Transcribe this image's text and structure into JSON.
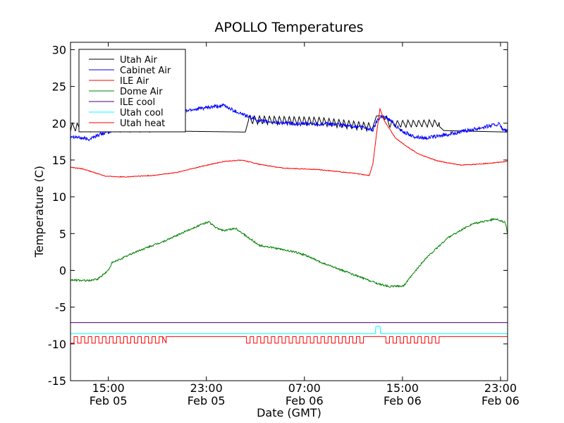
{
  "chart_data": {
    "type": "line",
    "title": "APOLLO Temperatures",
    "xlabel": "Date (GMT)",
    "ylabel": "Temperature (C)",
    "x_unit": "hours since Feb 05 11:00 GMT",
    "xlim": [
      0,
      37
    ],
    "ylim": [
      -15,
      31
    ],
    "yticks": [
      -15,
      -10,
      -5,
      0,
      5,
      10,
      15,
      20,
      25,
      30
    ],
    "xticks": [
      {
        "value": 3.2,
        "label1": "15:00",
        "label2": "Feb 05"
      },
      {
        "value": 11.5,
        "label1": "23:00",
        "label2": "Feb 05"
      },
      {
        "value": 19.8,
        "label1": "07:00",
        "label2": "Feb 06"
      },
      {
        "value": 28.1,
        "label1": "15:00",
        "label2": "Feb 06"
      },
      {
        "value": 36.4,
        "label1": "23:00",
        "label2": "Feb 06"
      }
    ],
    "legend_position": "top-left",
    "series": [
      {
        "name": "Utah Air",
        "color": "#000000",
        "points": [
          [
            0,
            19.0
          ],
          [
            10,
            18.9
          ],
          [
            14.8,
            18.8
          ],
          [
            15,
            20.0
          ],
          [
            21,
            19.8
          ],
          [
            25.5,
            19.0
          ],
          [
            25.9,
            21.0
          ],
          [
            26.4,
            21.0
          ],
          [
            27,
            19.5
          ],
          [
            31.2,
            19.6
          ],
          [
            31.6,
            19.0
          ],
          [
            37,
            18.8
          ]
        ],
        "oscillation": [
          {
            "start": 0,
            "end": 6.8,
            "period": 0.42,
            "amplitude": 1.2
          },
          {
            "start": 15.0,
            "end": 25.4,
            "period": 0.42,
            "amplitude": 1.2
          },
          {
            "start": 26.6,
            "end": 31.2,
            "period": 0.45,
            "amplitude": 1.0
          }
        ]
      },
      {
        "name": "Cabinet Air",
        "color": "#0000ff",
        "points": [
          [
            0,
            18.3
          ],
          [
            1.5,
            17.8
          ],
          [
            2.5,
            18.5
          ],
          [
            5,
            19.5
          ],
          [
            8,
            20.5
          ],
          [
            10,
            21.8
          ],
          [
            13,
            22.4
          ],
          [
            14,
            21.6
          ],
          [
            16,
            20.3
          ],
          [
            19,
            19.9
          ],
          [
            22,
            19.9
          ],
          [
            24.5,
            19.5
          ],
          [
            25.6,
            19.1
          ],
          [
            26,
            20.5
          ],
          [
            26.4,
            21.0
          ],
          [
            27,
            20.5
          ],
          [
            28,
            19.0
          ],
          [
            29,
            18.2
          ],
          [
            30,
            18.0
          ],
          [
            31,
            18.2
          ],
          [
            33,
            18.8
          ],
          [
            35,
            19.5
          ],
          [
            36.3,
            19.9
          ],
          [
            36.6,
            19.1
          ],
          [
            37,
            19.0
          ]
        ],
        "noise": 0.25
      },
      {
        "name": "ILE Air",
        "color": "#ff0000",
        "points": [
          [
            0,
            14.0
          ],
          [
            1,
            13.8
          ],
          [
            2,
            13.3
          ],
          [
            3,
            12.8
          ],
          [
            4.5,
            12.7
          ],
          [
            7,
            12.9
          ],
          [
            9,
            13.3
          ],
          [
            11,
            14.1
          ],
          [
            13,
            14.8
          ],
          [
            14.5,
            15.0
          ],
          [
            16,
            14.4
          ],
          [
            18,
            13.9
          ],
          [
            21,
            13.7
          ],
          [
            24,
            13.2
          ],
          [
            25.3,
            12.9
          ],
          [
            25.6,
            14.5
          ],
          [
            25.9,
            18.5
          ],
          [
            26.2,
            22.0
          ],
          [
            26.5,
            20.5
          ],
          [
            27.5,
            18.0
          ],
          [
            28.5,
            16.8
          ],
          [
            29.5,
            15.8
          ],
          [
            31,
            14.9
          ],
          [
            33,
            14.3
          ],
          [
            35,
            14.5
          ],
          [
            37,
            14.8
          ]
        ],
        "noise": 0.05
      },
      {
        "name": "Dome Air",
        "color": "#008000",
        "points": [
          [
            0,
            -1.3
          ],
          [
            1.5,
            -1.4
          ],
          [
            2.3,
            -1.2
          ],
          [
            3.2,
            0.0
          ],
          [
            3.5,
            1.0
          ],
          [
            5.5,
            2.5
          ],
          [
            8,
            4.0
          ],
          [
            10,
            5.5
          ],
          [
            11.2,
            6.3
          ],
          [
            11.7,
            6.6
          ],
          [
            12,
            6.2
          ],
          [
            12.3,
            5.8
          ],
          [
            13,
            5.4
          ],
          [
            14,
            5.7
          ],
          [
            15,
            4.5
          ],
          [
            16,
            3.4
          ],
          [
            19,
            2.5
          ],
          [
            20,
            2.0
          ],
          [
            21,
            1.2
          ],
          [
            24,
            -0.6
          ],
          [
            26,
            -1.8
          ],
          [
            27,
            -2.2
          ],
          [
            28.2,
            -2.1
          ],
          [
            30,
            1.5
          ],
          [
            32,
            4.5
          ],
          [
            34,
            6.3
          ],
          [
            36,
            7.0
          ],
          [
            36.8,
            6.5
          ],
          [
            37,
            5.0
          ]
        ],
        "noise": 0.12
      },
      {
        "name": "ILE cool",
        "color": "#4b0082",
        "points": [
          [
            0,
            -7.1
          ],
          [
            37,
            -7.1
          ]
        ]
      },
      {
        "name": "Utah cool",
        "color": "#00ffff",
        "points": [
          [
            0,
            -8.6
          ],
          [
            25.8,
            -8.6
          ],
          [
            25.85,
            -7.6
          ],
          [
            26.2,
            -7.6
          ],
          [
            26.25,
            -8.6
          ],
          [
            37,
            -8.6
          ]
        ]
      },
      {
        "name": "Utah heat",
        "color": "#ff0000",
        "baseline": -9.0,
        "pulse_value": -9.9,
        "pulse_blocks": [
          {
            "start": 0,
            "end": 7.8,
            "period": 0.6
          },
          {
            "start": 14.9,
            "end": 25.0,
            "period": 0.6
          },
          {
            "start": 26.7,
            "end": 31.3,
            "period": 0.6
          }
        ]
      }
    ]
  }
}
